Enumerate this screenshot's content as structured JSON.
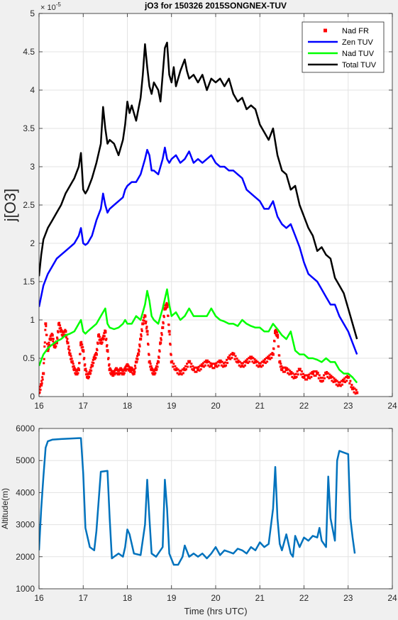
{
  "colors": {
    "figure_bg": "#f0f0f0",
    "axes_bg": "#ffffff",
    "grid": "#e3e3e3",
    "axis": "#262626"
  },
  "chart_data": [
    {
      "type": "line",
      "title": "jO3 for 150326 2015SONGNEX-TUV",
      "xlabel": "",
      "ylabel": "j[O3]",
      "exponent_label": "× 10",
      "exponent_power": "-5",
      "xlim": [
        16,
        24
      ],
      "ylim": [
        0,
        5
      ],
      "xticks": [
        "16",
        "17",
        "18",
        "19",
        "20",
        "21",
        "22",
        "23",
        "24"
      ],
      "yticks": [
        "0",
        "0.5",
        "1",
        "1.5",
        "2",
        "2.5",
        "3",
        "3.5",
        "4",
        "4.5",
        "5"
      ],
      "grid": true,
      "legend_position": "top-right",
      "series": [
        {
          "name": "Nad FR",
          "marker": "square",
          "color": "#ff0000",
          "x": [
            16.0,
            16.05,
            16.1,
            16.15,
            16.2,
            16.25,
            16.3,
            16.35,
            16.4,
            16.45,
            16.5,
            16.55,
            16.6,
            16.65,
            16.7,
            16.75,
            16.8,
            16.85,
            16.9,
            16.95,
            17.0,
            17.05,
            17.1,
            17.15,
            17.2,
            17.25,
            17.3,
            17.35,
            17.4,
            17.45,
            17.5,
            17.55,
            17.6,
            17.65,
            17.7,
            17.75,
            17.8,
            17.85,
            17.9,
            17.95,
            18.0,
            18.05,
            18.1,
            18.15,
            18.2,
            18.25,
            18.3,
            18.35,
            18.4,
            18.45,
            18.5,
            18.55,
            18.6,
            18.65,
            18.7,
            18.75,
            18.8,
            18.85,
            18.9,
            18.95,
            19.0,
            19.1,
            19.2,
            19.3,
            19.4,
            19.5,
            19.6,
            19.7,
            19.8,
            19.9,
            20.0,
            20.1,
            20.2,
            20.3,
            20.4,
            20.5,
            20.6,
            20.7,
            20.8,
            20.9,
            21.0,
            21.1,
            21.2,
            21.3,
            21.35,
            21.4,
            21.45,
            21.5,
            21.6,
            21.7,
            21.8,
            21.9,
            22.0,
            22.1,
            22.2,
            22.3,
            22.4,
            22.5,
            22.6,
            22.7,
            22.8,
            22.9,
            23.0,
            23.1,
            23.2
          ],
          "y": [
            0.05,
            0.15,
            0.3,
            0.95,
            0.6,
            0.75,
            0.8,
            0.65,
            0.7,
            0.95,
            0.85,
            0.8,
            0.85,
            0.7,
            0.55,
            0.45,
            0.35,
            0.3,
            0.35,
            0.7,
            0.6,
            0.35,
            0.25,
            0.3,
            0.4,
            0.5,
            0.55,
            0.8,
            0.7,
            0.75,
            0.85,
            0.6,
            0.35,
            0.3,
            0.3,
            0.35,
            0.3,
            0.35,
            0.3,
            0.35,
            0.4,
            0.35,
            0.35,
            0.3,
            0.45,
            0.55,
            0.75,
            0.95,
            1.05,
            0.85,
            0.45,
            0.35,
            0.3,
            0.35,
            0.45,
            0.7,
            0.9,
            1.15,
            1.2,
            0.85,
            0.45,
            0.35,
            0.3,
            0.35,
            0.45,
            0.35,
            0.35,
            0.4,
            0.45,
            0.4,
            0.4,
            0.45,
            0.4,
            0.5,
            0.55,
            0.45,
            0.4,
            0.45,
            0.5,
            0.45,
            0.4,
            0.45,
            0.5,
            0.55,
            0.85,
            0.8,
            0.45,
            0.35,
            0.35,
            0.3,
            0.25,
            0.35,
            0.25,
            0.25,
            0.3,
            0.3,
            0.2,
            0.3,
            0.25,
            0.2,
            0.15,
            0.2,
            0.25,
            0.1,
            0.05
          ]
        },
        {
          "name": "Zen TUV",
          "color": "#0000ff",
          "x": [
            16.0,
            16.1,
            16.2,
            16.3,
            16.4,
            16.5,
            16.6,
            16.7,
            16.8,
            16.9,
            16.95,
            17.0,
            17.05,
            17.1,
            17.2,
            17.3,
            17.4,
            17.45,
            17.5,
            17.55,
            17.6,
            17.7,
            17.8,
            17.9,
            17.95,
            18.0,
            18.1,
            18.2,
            18.3,
            18.4,
            18.45,
            18.5,
            18.55,
            18.6,
            18.7,
            18.8,
            18.85,
            18.9,
            18.95,
            19.0,
            19.1,
            19.2,
            19.3,
            19.4,
            19.5,
            19.6,
            19.7,
            19.8,
            19.9,
            20.0,
            20.1,
            20.2,
            20.3,
            20.4,
            20.5,
            20.6,
            20.7,
            20.8,
            20.9,
            21.0,
            21.1,
            21.2,
            21.3,
            21.4,
            21.5,
            21.6,
            21.7,
            21.8,
            21.9,
            22.0,
            22.1,
            22.2,
            22.3,
            22.4,
            22.5,
            22.6,
            22.7,
            22.8,
            22.9,
            23.0,
            23.1,
            23.2
          ],
          "y": [
            1.17,
            1.45,
            1.6,
            1.7,
            1.8,
            1.85,
            1.9,
            1.95,
            2.0,
            2.1,
            2.2,
            2.0,
            1.98,
            2.0,
            2.1,
            2.3,
            2.45,
            2.65,
            2.5,
            2.4,
            2.45,
            2.5,
            2.55,
            2.6,
            2.7,
            2.75,
            2.8,
            2.8,
            2.9,
            3.1,
            3.22,
            3.15,
            2.95,
            2.95,
            2.9,
            3.1,
            3.25,
            3.1,
            3.05,
            3.1,
            3.15,
            3.05,
            3.1,
            3.2,
            3.05,
            3.1,
            3.05,
            3.1,
            3.15,
            3.05,
            3.0,
            3.0,
            2.95,
            2.95,
            2.9,
            2.85,
            2.7,
            2.65,
            2.6,
            2.55,
            2.45,
            2.45,
            2.55,
            2.35,
            2.25,
            2.2,
            2.25,
            2.1,
            1.95,
            1.75,
            1.6,
            1.55,
            1.5,
            1.4,
            1.3,
            1.2,
            1.2,
            1.05,
            0.95,
            0.85,
            0.7,
            0.55
          ]
        },
        {
          "name": "Nad TUV",
          "color": "#00ff00",
          "x": [
            16.0,
            16.1,
            16.2,
            16.3,
            16.4,
            16.5,
            16.6,
            16.7,
            16.8,
            16.9,
            16.95,
            17.0,
            17.05,
            17.1,
            17.2,
            17.3,
            17.4,
            17.5,
            17.55,
            17.6,
            17.7,
            17.8,
            17.9,
            17.95,
            18.0,
            18.1,
            18.2,
            18.3,
            18.4,
            18.45,
            18.5,
            18.55,
            18.6,
            18.7,
            18.8,
            18.9,
            18.95,
            19.0,
            19.1,
            19.2,
            19.3,
            19.4,
            19.5,
            19.6,
            19.7,
            19.8,
            19.9,
            20.0,
            20.1,
            20.2,
            20.3,
            20.4,
            20.5,
            20.6,
            20.7,
            20.8,
            20.9,
            21.0,
            21.1,
            21.2,
            21.3,
            21.4,
            21.5,
            21.6,
            21.7,
            21.8,
            21.9,
            22.0,
            22.1,
            22.2,
            22.3,
            22.4,
            22.5,
            22.6,
            22.7,
            22.8,
            22.9,
            23.0,
            23.1,
            23.2
          ],
          "y": [
            0.4,
            0.55,
            0.63,
            0.68,
            0.72,
            0.75,
            0.8,
            0.82,
            0.85,
            0.95,
            1.0,
            0.85,
            0.82,
            0.85,
            0.9,
            0.95,
            1.05,
            1.15,
            0.95,
            0.9,
            0.88,
            0.9,
            0.95,
            1.0,
            0.95,
            0.95,
            1.05,
            1.0,
            1.2,
            1.38,
            1.25,
            1.05,
            1.0,
            0.95,
            1.15,
            1.4,
            1.2,
            1.05,
            1.1,
            1.0,
            1.05,
            1.15,
            1.05,
            1.05,
            1.05,
            1.05,
            1.15,
            1.05,
            1.0,
            0.98,
            0.95,
            0.95,
            0.92,
            1.0,
            0.95,
            0.92,
            0.9,
            0.9,
            0.85,
            0.85,
            0.95,
            0.88,
            0.8,
            0.75,
            0.85,
            0.6,
            0.55,
            0.55,
            0.5,
            0.5,
            0.48,
            0.45,
            0.5,
            0.45,
            0.45,
            0.35,
            0.3,
            0.3,
            0.25,
            0.18
          ]
        },
        {
          "name": "Total TUV",
          "color": "#000000",
          "x": [
            16.0,
            16.05,
            16.1,
            16.2,
            16.3,
            16.4,
            16.5,
            16.6,
            16.7,
            16.8,
            16.9,
            16.95,
            17.0,
            17.05,
            17.1,
            17.2,
            17.3,
            17.4,
            17.45,
            17.5,
            17.55,
            17.6,
            17.7,
            17.8,
            17.9,
            17.95,
            18.0,
            18.05,
            18.1,
            18.2,
            18.3,
            18.35,
            18.4,
            18.45,
            18.5,
            18.55,
            18.6,
            18.7,
            18.75,
            18.8,
            18.85,
            18.9,
            18.95,
            19.0,
            19.05,
            19.1,
            19.2,
            19.3,
            19.35,
            19.4,
            19.5,
            19.6,
            19.7,
            19.8,
            19.9,
            20.0,
            20.1,
            20.2,
            20.3,
            20.4,
            20.5,
            20.6,
            20.7,
            20.8,
            20.9,
            21.0,
            21.1,
            21.2,
            21.3,
            21.4,
            21.5,
            21.6,
            21.7,
            21.8,
            21.9,
            22.0,
            22.1,
            22.2,
            22.3,
            22.4,
            22.5,
            22.6,
            22.7,
            22.8,
            22.9,
            23.0,
            23.1,
            23.2
          ],
          "y": [
            1.57,
            1.85,
            2.05,
            2.2,
            2.3,
            2.4,
            2.5,
            2.65,
            2.75,
            2.85,
            3.0,
            3.18,
            2.7,
            2.65,
            2.7,
            2.85,
            3.05,
            3.3,
            3.78,
            3.5,
            3.3,
            3.35,
            3.3,
            3.15,
            3.35,
            3.55,
            3.85,
            3.7,
            3.8,
            3.6,
            3.9,
            4.2,
            4.6,
            4.3,
            4.05,
            3.95,
            4.1,
            4.0,
            3.85,
            4.2,
            4.55,
            4.62,
            4.2,
            4.1,
            4.3,
            4.05,
            4.25,
            4.4,
            4.25,
            4.15,
            4.2,
            4.1,
            4.2,
            4.0,
            4.15,
            4.1,
            4.15,
            4.05,
            4.15,
            3.95,
            3.85,
            3.9,
            3.75,
            3.8,
            3.75,
            3.55,
            3.45,
            3.35,
            3.5,
            3.15,
            2.95,
            2.9,
            2.7,
            2.75,
            2.5,
            2.35,
            2.2,
            2.1,
            1.9,
            1.95,
            1.85,
            1.8,
            1.55,
            1.45,
            1.35,
            1.15,
            0.95,
            0.75
          ]
        }
      ]
    },
    {
      "type": "line",
      "title": "",
      "xlabel": "Time (hrs UTC)",
      "ylabel": "Altitude(m)",
      "xlim": [
        16,
        24
      ],
      "ylim": [
        1000,
        6000
      ],
      "xticks": [
        "16",
        "17",
        "18",
        "19",
        "20",
        "21",
        "22",
        "23",
        "24"
      ],
      "yticks": [
        "1000",
        "2000",
        "3000",
        "4000",
        "5000",
        "6000"
      ],
      "grid": true,
      "series": [
        {
          "color": "#0072bd",
          "x": [
            16.0,
            16.05,
            16.1,
            16.15,
            16.2,
            16.3,
            16.5,
            16.9,
            16.95,
            17.0,
            17.05,
            17.15,
            17.25,
            17.3,
            17.4,
            17.55,
            17.6,
            17.65,
            17.7,
            17.8,
            17.9,
            17.95,
            18.0,
            18.05,
            18.15,
            18.3,
            18.4,
            18.45,
            18.5,
            18.55,
            18.65,
            18.8,
            18.85,
            18.9,
            18.95,
            19.05,
            19.15,
            19.25,
            19.3,
            19.4,
            19.5,
            19.6,
            19.7,
            19.8,
            19.9,
            20.0,
            20.1,
            20.2,
            20.3,
            20.4,
            20.5,
            20.6,
            20.7,
            20.8,
            20.9,
            21.0,
            21.1,
            21.2,
            21.3,
            21.35,
            21.4,
            21.45,
            21.5,
            21.6,
            21.7,
            21.75,
            21.8,
            21.9,
            22.0,
            22.1,
            22.2,
            22.3,
            22.35,
            22.4,
            22.5,
            22.55,
            22.6,
            22.7,
            22.75,
            22.8,
            22.9,
            23.0,
            23.05,
            23.1,
            23.15
          ],
          "y": [
            2200,
            3500,
            4500,
            5400,
            5600,
            5650,
            5670,
            5700,
            5700,
            4600,
            2900,
            2300,
            2200,
            2800,
            4650,
            4680,
            3200,
            1950,
            2000,
            2100,
            2000,
            2300,
            2850,
            2700,
            2100,
            2050,
            3000,
            4400,
            3200,
            2100,
            2000,
            2300,
            4400,
            3500,
            2100,
            1750,
            1750,
            2000,
            2350,
            2000,
            2100,
            2000,
            2100,
            1950,
            2100,
            2300,
            2050,
            2200,
            2150,
            2100,
            2250,
            2200,
            2100,
            2300,
            2200,
            2450,
            2300,
            2400,
            3500,
            4800,
            3200,
            2400,
            2200,
            2700,
            2100,
            2000,
            2650,
            2300,
            2600,
            2500,
            2650,
            2600,
            2900,
            2500,
            2300,
            4500,
            3200,
            2500,
            5000,
            5300,
            5250,
            5200,
            3200,
            2600,
            2100
          ]
        }
      ]
    }
  ]
}
